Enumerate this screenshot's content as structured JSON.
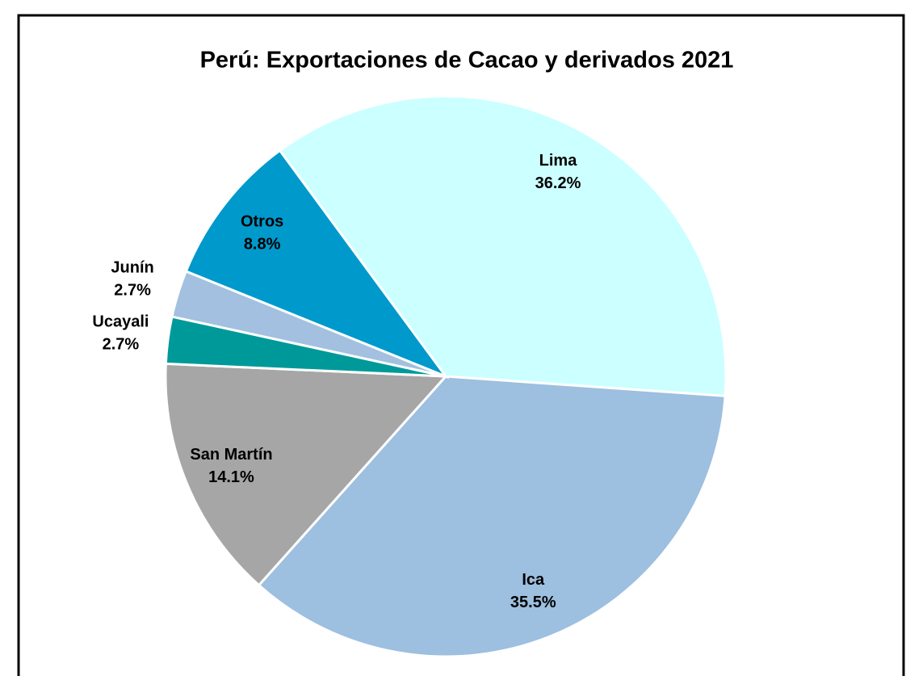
{
  "chart_data": {
    "type": "pie",
    "title": "Perú: Exportaciones de Cacao y derivados 2021",
    "categories": [
      "Lima",
      "Ica",
      "San Martín",
      "Ucayali",
      "Junín",
      "Otros"
    ],
    "values": [
      36.2,
      35.5,
      14.1,
      2.7,
      2.7,
      8.8
    ],
    "value_labels": [
      "36.2%",
      "35.5%",
      "14.1%",
      "2.7%",
      "2.7%",
      "8.8%"
    ],
    "colors": [
      "#ccffff",
      "#9dbfe0",
      "#a6a6a6",
      "#009999",
      "#a3c0e0",
      "#0099cc"
    ]
  }
}
